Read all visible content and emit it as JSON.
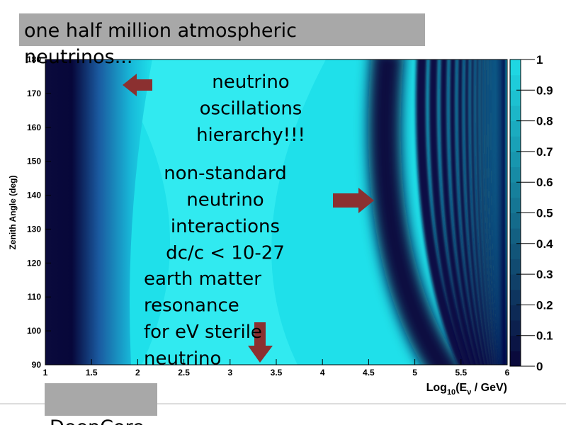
{
  "slide": {
    "title": [
      "one half million atmospheric",
      "neutrinos..."
    ],
    "annotations": {
      "hierarchy": [
        "neutrino",
        "oscillations",
        "hierarchy!!!"
      ],
      "nsi": [
        "non-standard",
        "neutrino",
        "interactions",
        "dc/c < 10-27"
      ],
      "sterile": [
        "earth matter",
        "resonance",
        "for eV sterile",
        "neutrino"
      ]
    },
    "footer": "DeepCore",
    "plot": {
      "y_label": "Zenith Angle (deg)",
      "x_label": [
        "Log",
        "10",
        "(E",
        "ν",
        " / GeV)"
      ],
      "xlim": [
        1,
        6
      ],
      "xticks": [
        1,
        1.5,
        2,
        2.5,
        3,
        3.5,
        4,
        4.5,
        5,
        5.5,
        6
      ],
      "ylim": [
        90,
        180
      ],
      "yticks": [
        90,
        100,
        110,
        120,
        130,
        140,
        150,
        160,
        170,
        180
      ],
      "colorbar_lim": [
        0,
        1
      ],
      "colorbar_ticks": [
        0,
        0.1,
        0.2,
        0.3,
        0.4,
        0.5,
        0.6,
        0.7,
        0.8,
        0.9,
        1
      ]
    }
  }
}
